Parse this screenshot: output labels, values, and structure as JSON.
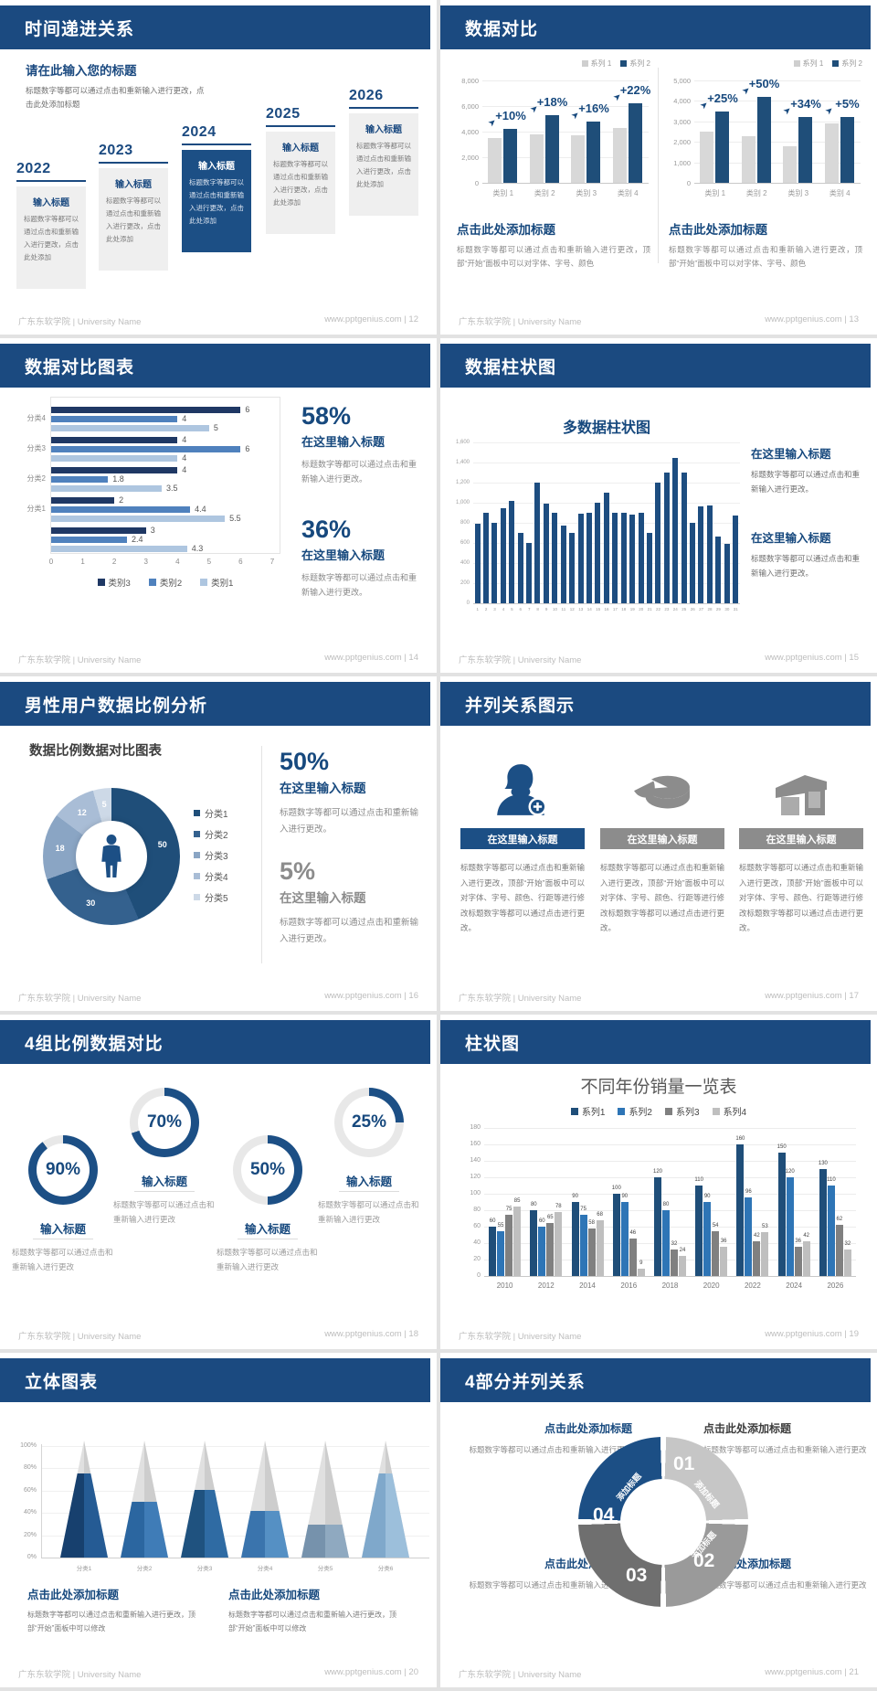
{
  "footer": {
    "left_brand": "广东东软学院 | University Name"
  },
  "colors": {
    "header_navy": "#1b4a80",
    "accent_navy": "#1f4e79",
    "mid_blue": "#2e75b6",
    "light_gray_bar": "#d8d8d8",
    "gray": "#8c8c8c"
  },
  "slides": [
    {
      "title": "时间递进关系",
      "footer_right": "www.pptgenius.com  | 12",
      "intro_title": "请在此输入您的标题",
      "intro_body": "标题数字等都可以通过点击和重新输入进行更改，点击此处添加标题",
      "steps": [
        {
          "year": "2022",
          "title": "输入标题",
          "body": "标题数字等都可以通过点击和重新输入进行更改，点击此处添加",
          "highlight": false
        },
        {
          "year": "2023",
          "title": "输入标题",
          "body": "标题数字等都可以通过点击和重新输入进行更改，点击此处添加",
          "highlight": false
        },
        {
          "year": "2024",
          "title": "输入标题",
          "body": "标题数字等都可以通过点击和重新输入进行更改，点击此处添加",
          "highlight": true
        },
        {
          "year": "2025",
          "title": "输入标题",
          "body": "标题数字等都可以通过点击和重新输入进行更改，点击此处添加",
          "highlight": false
        },
        {
          "year": "2026",
          "title": "输入标题",
          "body": "标题数字等都可以通过点击和重新输入进行更改，点击此处添加",
          "highlight": false
        }
      ]
    },
    {
      "title": "数据对比",
      "footer_right": "www.pptgenius.com  | 13",
      "legend": [
        "系列 1",
        "系列 2"
      ],
      "charts": [
        {
          "type": "bar",
          "ymax": 8000,
          "ystep": 2000,
          "categories": [
            "类别 1",
            "类别 2",
            "类别 3",
            "类别 4"
          ],
          "series1": [
            3500,
            3800,
            3700,
            4300
          ],
          "series2": [
            4200,
            5300,
            4800,
            6200
          ],
          "growth": [
            "+10%",
            "+18%",
            "+16%",
            "+22%"
          ],
          "caption_title": "点击此处添加标题",
          "caption_body": "标题数字等都可以通过点击和重新输入进行更改，顶部“开始”面板中可以对字体、字号、颜色"
        },
        {
          "type": "bar",
          "ymax": 5000,
          "ystep": 1000,
          "categories": [
            "类别 1",
            "类别 2",
            "类别 3",
            "类别 4"
          ],
          "series1": [
            2500,
            2300,
            1800,
            2900
          ],
          "series2": [
            3500,
            4200,
            3200,
            3200
          ],
          "growth": [
            "+25%",
            "+50%",
            "+34%",
            "+5%"
          ],
          "caption_title": "点击此处添加标题",
          "caption_body": "标题数字等都可以通过点击和重新输入进行更改，顶部“开始”面板中可以对字体、字号、颜色"
        }
      ]
    },
    {
      "title": "数据对比图表",
      "footer_right": "www.pptgenius.com  | 14",
      "chart": {
        "type": "bar",
        "xmax": 7,
        "xticks": [
          "0",
          "1",
          "2",
          "3",
          "4",
          "5",
          "6",
          "7"
        ],
        "groups": [
          {
            "label": "分类4",
            "values": [
              6,
              4,
              5
            ]
          },
          {
            "label": "分类3",
            "values": [
              4,
              6,
              4
            ]
          },
          {
            "label": "分类2",
            "values": [
              4,
              1.8,
              3.5
            ]
          },
          {
            "label": "分类1",
            "values": [
              2,
              4.4,
              5.5
            ]
          },
          {
            "label": "",
            "values": [
              3,
              2.4,
              4.3
            ]
          }
        ],
        "legend": [
          {
            "label": "类别3",
            "color": "#1f3864"
          },
          {
            "label": "类别2",
            "color": "#4f81bd"
          },
          {
            "label": "类别1",
            "color": "#aec6e0"
          }
        ]
      },
      "stats": [
        {
          "value": "58%",
          "title": "在这里输入标题",
          "body": "标题数字等都可以通过点击和重新输入进行更改。"
        },
        {
          "value": "36%",
          "title": "在这里输入标题",
          "body": "标题数字等都可以通过点击和重新输入进行更改。"
        }
      ]
    },
    {
      "title": "数据柱状图",
      "footer_right": "www.pptgenius.com  | 15",
      "chart_title": "多数据柱状图",
      "chart": {
        "type": "bar",
        "ymax": 1600,
        "ystep": 200,
        "x": [
          "1",
          "2",
          "3",
          "4",
          "5",
          "6",
          "7",
          "8",
          "9",
          "10",
          "11",
          "12",
          "13",
          "14",
          "15",
          "16",
          "17",
          "18",
          "19",
          "20",
          "21",
          "22",
          "23",
          "24",
          "25",
          "26",
          "27",
          "28",
          "29",
          "30",
          "31"
        ],
        "values": [
          790,
          900,
          800,
          950,
          1020,
          700,
          600,
          1200,
          990,
          900,
          775,
          700,
          890,
          900,
          1000,
          1100,
          900,
          900,
          880,
          900,
          700,
          1200,
          1300,
          1450,
          1300,
          800,
          960,
          970,
          660,
          590,
          870
        ]
      },
      "blocks": [
        {
          "title": "在这里输入标题",
          "body": "标题数字等都可以通过点击和重新输入进行更改。"
        },
        {
          "title": "在这里输入标题",
          "body": "标题数字等都可以通过点击和重新输入进行更改。"
        }
      ]
    },
    {
      "title": "男性用户数据比例分析",
      "footer_right": "www.pptgenius.com  | 16",
      "chart_title": "数据比例数据对比图表",
      "donut": {
        "type": "pie",
        "values": [
          50,
          30,
          18,
          12,
          5
        ],
        "labels": [
          "50",
          "30",
          "18",
          "12",
          "5"
        ],
        "colors": [
          "#1f4e79",
          "#34618e",
          "#8aa5c4",
          "#a9bdd6",
          "#cdd9e7"
        ],
        "legend": [
          "分类1",
          "分类2",
          "分类3",
          "分类4",
          "分类5"
        ]
      },
      "stats": [
        {
          "value": "50%",
          "title": "在这里输入标题",
          "body": "标题数字等都可以通过点击和重新输入进行更改。"
        },
        {
          "value": "5%",
          "title": "在这里输入标题",
          "body": "标题数字等都可以通过点击和重新输入进行更改。"
        }
      ]
    },
    {
      "title": "并列关系图示",
      "footer_right": "www.pptgenius.com  | 17",
      "items": [
        {
          "icon": "woman-plus-icon",
          "title": "在这里输入标题",
          "body": "标题数字等都可以通过点击和重新输入进行更改，顶部“开始”面板中可以对字体、字号、颜色、行距等进行修改标题数字等都可以通过点击进行更改。"
        },
        {
          "icon": "pie-chart-icon",
          "title": "在这里输入标题",
          "body": "标题数字等都可以通过点击和重新输入进行更改，顶部“开始”面板中可以对字体、字号、颜色、行距等进行修改标题数字等都可以通过点击进行更改。"
        },
        {
          "icon": "store-icon",
          "title": "在这里输入标题",
          "body": "标题数字等都可以通过点击和重新输入进行更改，顶部“开始”面板中可以对字体、字号、颜色、行距等进行修改标题数字等都可以通过点击进行更改。"
        }
      ]
    },
    {
      "title": "4组比例数据对比",
      "footer_right": "www.pptgenius.com  | 18",
      "gauges": [
        {
          "percent": 90,
          "percent_label": "90%",
          "label": "输入标题",
          "body": "标题数字等都可以通过点击和重新输入进行更改"
        },
        {
          "percent": 70,
          "percent_label": "70%",
          "label": "输入标题",
          "body": "标题数字等都可以通过点击和重新输入进行更改"
        },
        {
          "percent": 50,
          "percent_label": "50%",
          "label": "输入标题",
          "body": "标题数字等都可以通过点击和重新输入进行更改"
        },
        {
          "percent": 25,
          "percent_label": "25%",
          "label": "输入标题",
          "body": "标题数字等都可以通过点击和重新输入进行更改"
        }
      ]
    },
    {
      "title": "柱状图",
      "footer_right": "www.pptgenius.com  | 19",
      "chart_title": "不同年份销量一览表",
      "chart": {
        "type": "bar",
        "ymax": 180,
        "ystep": 20,
        "categories": [
          "2010",
          "2012",
          "2014",
          "2016",
          "2018",
          "2020",
          "2022",
          "2024",
          "2026"
        ],
        "legend": [
          "系列1",
          "系列2",
          "系列3",
          "系列4"
        ],
        "colors": [
          "#1f4e79",
          "#2e75b6",
          "#808080",
          "#bfbfbf"
        ],
        "series": [
          {
            "name": "系列1",
            "values": [
              60,
              80,
              90,
              100,
              120,
              110,
              160,
              150,
              130
            ]
          },
          {
            "name": "系列2",
            "values": [
              55,
              60,
              75,
              90,
              80,
              90,
              96,
              120,
              110
            ]
          },
          {
            "name": "系列3",
            "values": [
              75,
              65,
              58,
              46,
              32,
              54,
              42,
              36,
              62
            ]
          },
          {
            "name": "系列4",
            "values": [
              85,
              78,
              68,
              9,
              24,
              36,
              53,
              42,
              32
            ]
          }
        ]
      }
    },
    {
      "title": "立体图表",
      "footer_right": "www.pptgenius.com  | 20",
      "chart": {
        "type": "bar",
        "categories": [
          "分类1",
          "分类2",
          "分类3",
          "分类4",
          "分类5",
          "分类6"
        ],
        "fill_pct": [
          72,
          48,
          58,
          40,
          28,
          72
        ],
        "yticks": [
          "0%",
          "20%",
          "40%",
          "60%",
          "80%",
          "100%"
        ],
        "fill_colors": [
          [
            "#17406e",
            "#255b94"
          ],
          [
            "#2b66a0",
            "#3f7cb7"
          ],
          [
            "#1f527f",
            "#2f6ba3"
          ],
          [
            "#3a74ad",
            "#5590c4"
          ],
          [
            "#7692ac",
            "#8fa9c0"
          ],
          [
            "#7fa8cb",
            "#9cbfdb"
          ]
        ]
      },
      "blocks": [
        {
          "title": "点击此处添加标题",
          "body": "标题数字等都可以通过点击和重新输入进行更改，顶部“开始”面板中可以修改"
        },
        {
          "title": "点击此处添加标题",
          "body": "标题数字等都可以通过点击和重新输入进行更改，顶部“开始”面板中可以修改"
        }
      ]
    },
    {
      "title": "4部分并列关系",
      "footer_right": "www.pptgenius.com  | 21",
      "segments": [
        {
          "num": "01",
          "label": "添加标题",
          "color": "#c6c6c6"
        },
        {
          "num": "02",
          "label": "添加标题",
          "color": "#9a9a9a"
        },
        {
          "num": "03",
          "label": "添加标题",
          "color": "#6f6f6f"
        },
        {
          "num": "04",
          "label": "添加标题",
          "color": "#1c4f85"
        }
      ],
      "blocks": [
        {
          "title": "点击此处添加标题",
          "body": "标题数字等都可以通过点击和重新输入进行更改"
        },
        {
          "title": "点击此处添加标题",
          "body": "标题数字等都可以通过点击和重新输入进行更改"
        },
        {
          "title": "点击此处添加标题",
          "body": "标题数字等都可以通过点击和重新输入进行更改"
        },
        {
          "title": "点击此处添加标题",
          "body": "标题数字等都可以通过点击和重新输入进行更改"
        }
      ]
    }
  ]
}
